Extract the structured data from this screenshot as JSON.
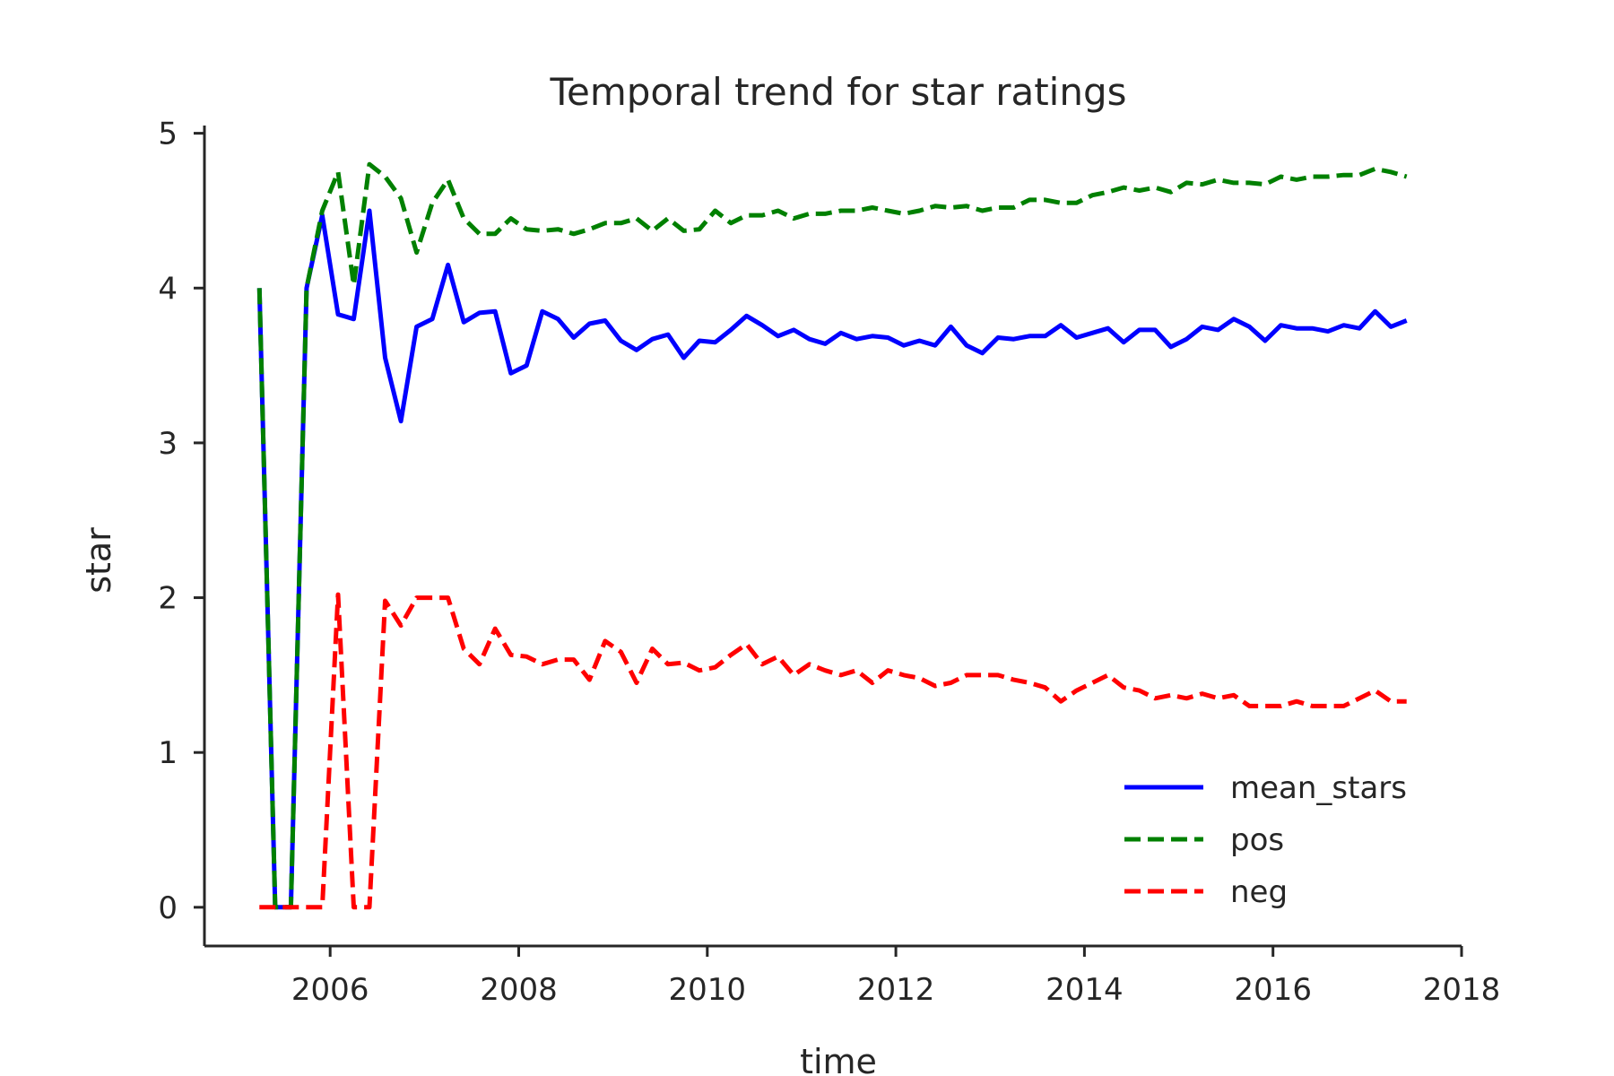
{
  "chart_data": {
    "type": "line",
    "title": "Temporal trend for star ratings",
    "xlabel": "time",
    "ylabel": "star",
    "xlim": [
      "2004-09-01",
      "2018-01-01"
    ],
    "ylim": [
      -0.25,
      5.05
    ],
    "xticks": [
      "2006",
      "2008",
      "2010",
      "2012",
      "2014",
      "2016",
      "2018"
    ],
    "yticks": [
      "0",
      "1",
      "2",
      "3",
      "4",
      "5"
    ],
    "grid": false,
    "legend_position": "lower-right",
    "x": [
      "2005-04",
      "2005-06",
      "2005-08",
      "2005-10",
      "2005-12",
      "2006-02",
      "2006-04",
      "2006-06",
      "2006-08",
      "2006-10",
      "2006-12",
      "2007-02",
      "2007-04",
      "2007-06",
      "2007-08",
      "2007-10",
      "2007-12",
      "2008-02",
      "2008-04",
      "2008-06",
      "2008-08",
      "2008-10",
      "2008-12",
      "2009-02",
      "2009-04",
      "2009-06",
      "2009-08",
      "2009-10",
      "2009-12",
      "2010-02",
      "2010-04",
      "2010-06",
      "2010-08",
      "2010-10",
      "2010-12",
      "2011-02",
      "2011-04",
      "2011-06",
      "2011-08",
      "2011-10",
      "2011-12",
      "2012-02",
      "2012-04",
      "2012-06",
      "2012-08",
      "2012-10",
      "2012-12",
      "2013-02",
      "2013-04",
      "2013-06",
      "2013-08",
      "2013-10",
      "2013-12",
      "2014-02",
      "2014-04",
      "2014-06",
      "2014-08",
      "2014-10",
      "2014-12",
      "2015-02",
      "2015-04",
      "2015-06",
      "2015-08",
      "2015-10",
      "2015-12",
      "2016-02",
      "2016-04",
      "2016-06",
      "2016-08",
      "2016-10",
      "2016-12",
      "2017-02",
      "2017-04",
      "2017-06"
    ],
    "series": [
      {
        "name": "mean_stars",
        "color": "#0000ff",
        "style": "solid",
        "values": [
          4.0,
          0.0,
          0.0,
          4.0,
          4.47,
          3.83,
          3.8,
          4.5,
          3.55,
          3.14,
          3.75,
          3.8,
          4.15,
          3.78,
          3.84,
          3.85,
          3.45,
          3.5,
          3.85,
          3.8,
          3.68,
          3.77,
          3.79,
          3.66,
          3.6,
          3.67,
          3.7,
          3.55,
          3.66,
          3.65,
          3.73,
          3.82,
          3.76,
          3.69,
          3.73,
          3.67,
          3.64,
          3.71,
          3.67,
          3.69,
          3.68,
          3.63,
          3.66,
          3.63,
          3.75,
          3.63,
          3.58,
          3.68,
          3.67,
          3.69,
          3.69,
          3.76,
          3.68,
          3.71,
          3.74,
          3.65,
          3.73,
          3.73,
          3.62,
          3.67,
          3.75,
          3.73,
          3.8,
          3.75,
          3.66,
          3.76,
          3.74,
          3.74,
          3.72,
          3.76,
          3.74,
          3.85,
          3.75,
          3.79
        ]
      },
      {
        "name": "pos",
        "color": "#008000",
        "style": "dashed",
        "values": [
          4.0,
          0.0,
          0.0,
          4.0,
          4.5,
          4.75,
          4.02,
          4.8,
          4.72,
          4.58,
          4.23,
          4.55,
          4.7,
          4.45,
          4.35,
          4.35,
          4.45,
          4.38,
          4.37,
          4.38,
          4.35,
          4.38,
          4.42,
          4.42,
          4.45,
          4.37,
          4.45,
          4.37,
          4.38,
          4.5,
          4.42,
          4.47,
          4.47,
          4.5,
          4.45,
          4.48,
          4.48,
          4.5,
          4.5,
          4.52,
          4.5,
          4.48,
          4.5,
          4.53,
          4.52,
          4.53,
          4.5,
          4.52,
          4.52,
          4.57,
          4.57,
          4.55,
          4.55,
          4.6,
          4.62,
          4.65,
          4.63,
          4.65,
          4.62,
          4.68,
          4.67,
          4.7,
          4.68,
          4.68,
          4.67,
          4.72,
          4.7,
          4.72,
          4.72,
          4.73,
          4.73,
          4.77,
          4.75,
          4.72
        ]
      },
      {
        "name": "neg",
        "color": "#ff0000",
        "style": "dashed",
        "values": [
          0.0,
          0.0,
          0.0,
          0.0,
          0.0,
          2.02,
          0.0,
          0.0,
          1.98,
          1.82,
          2.0,
          2.0,
          2.0,
          1.67,
          1.57,
          1.8,
          1.63,
          1.62,
          1.57,
          1.6,
          1.6,
          1.47,
          1.72,
          1.65,
          1.45,
          1.67,
          1.57,
          1.58,
          1.53,
          1.55,
          1.63,
          1.7,
          1.57,
          1.62,
          1.5,
          1.57,
          1.53,
          1.5,
          1.53,
          1.45,
          1.53,
          1.5,
          1.48,
          1.43,
          1.45,
          1.5,
          1.5,
          1.5,
          1.47,
          1.45,
          1.42,
          1.33,
          1.4,
          1.45,
          1.5,
          1.42,
          1.4,
          1.35,
          1.37,
          1.35,
          1.38,
          1.35,
          1.37,
          1.3,
          1.3,
          1.3,
          1.33,
          1.3,
          1.3,
          1.3,
          1.35,
          1.4,
          1.33,
          1.33
        ]
      }
    ]
  }
}
